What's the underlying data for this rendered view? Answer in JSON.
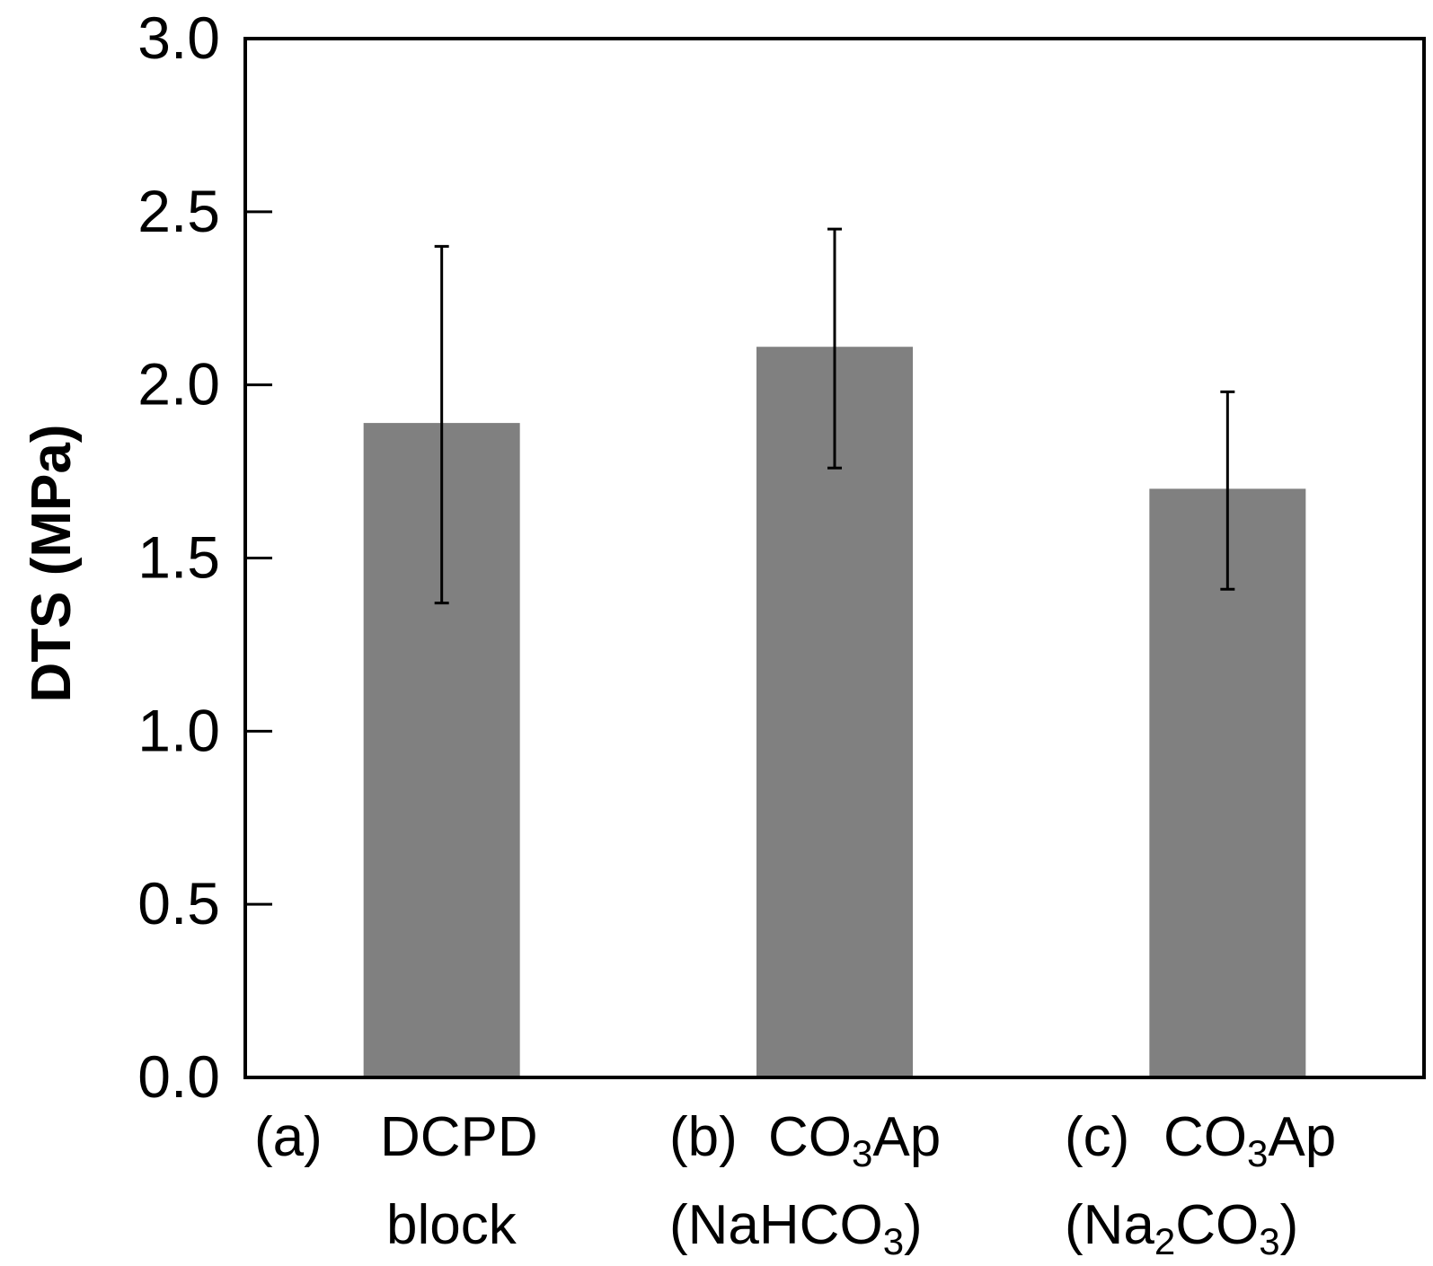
{
  "chart_data": {
    "type": "bar",
    "title": "",
    "xlabel": "",
    "ylabel": "DTS (MPa)",
    "ylim": [
      0,
      3.0
    ],
    "yticks": [
      "0.0",
      "0.5",
      "1.0",
      "1.5",
      "2.0",
      "2.5",
      "3.0"
    ],
    "grid": false,
    "categories": [
      {
        "marker": "(a)",
        "line1": [
          {
            "t": "DCPD"
          }
        ],
        "line2": [
          {
            "t": "block"
          }
        ]
      },
      {
        "marker": "(b)",
        "line1": [
          {
            "t": "CO"
          },
          {
            "t": "3",
            "sub": true
          },
          {
            "t": "Ap"
          }
        ],
        "line2": [
          {
            "t": "(NaHCO"
          },
          {
            "t": "3",
            "sub": true
          },
          {
            "t": ")"
          }
        ]
      },
      {
        "marker": "(c)",
        "line1": [
          {
            "t": "CO"
          },
          {
            "t": "3",
            "sub": true
          },
          {
            "t": "Ap"
          }
        ],
        "line2": [
          {
            "t": "(Na"
          },
          {
            "t": "2",
            "sub": true
          },
          {
            "t": "CO"
          },
          {
            "t": "3",
            "sub": true
          },
          {
            "t": ")"
          }
        ]
      }
    ],
    "values": [
      1.89,
      2.11,
      1.7
    ],
    "error_low": [
      1.37,
      1.76,
      1.41
    ],
    "error_high": [
      2.4,
      2.45,
      1.98
    ],
    "colors": {
      "bar": "#808080",
      "axis": "#000000",
      "error": "#000000"
    }
  }
}
